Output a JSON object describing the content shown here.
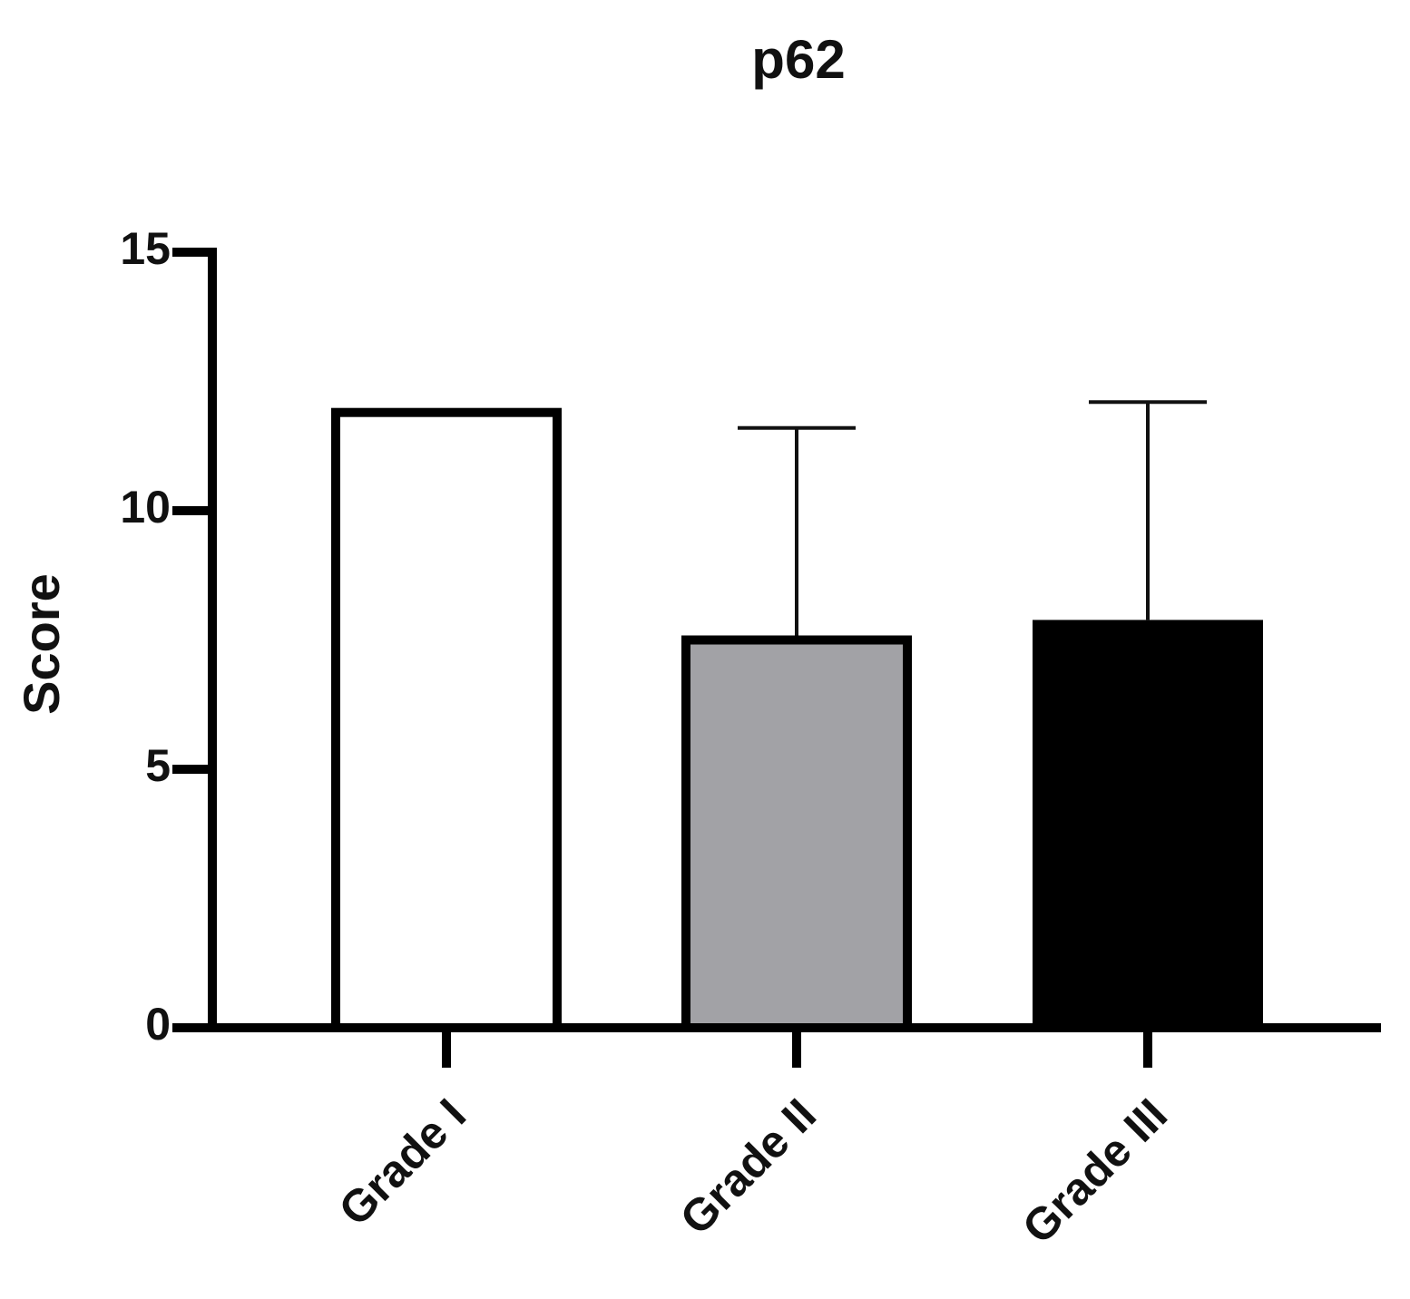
{
  "chart_data": {
    "type": "bar",
    "title": "p62",
    "y_label": "Score",
    "categories": [
      "Grade I",
      "Grade II",
      "Grade III"
    ],
    "values": [
      11.9,
      7.5,
      7.8
    ],
    "errors": [
      null,
      4.1,
      4.3
    ],
    "colors": [
      "#ffffff",
      "#a2a2a6",
      "#000000"
    ],
    "ylim": [
      0,
      15
    ],
    "yticks": [
      0,
      5,
      10,
      15
    ],
    "grid": false
  }
}
